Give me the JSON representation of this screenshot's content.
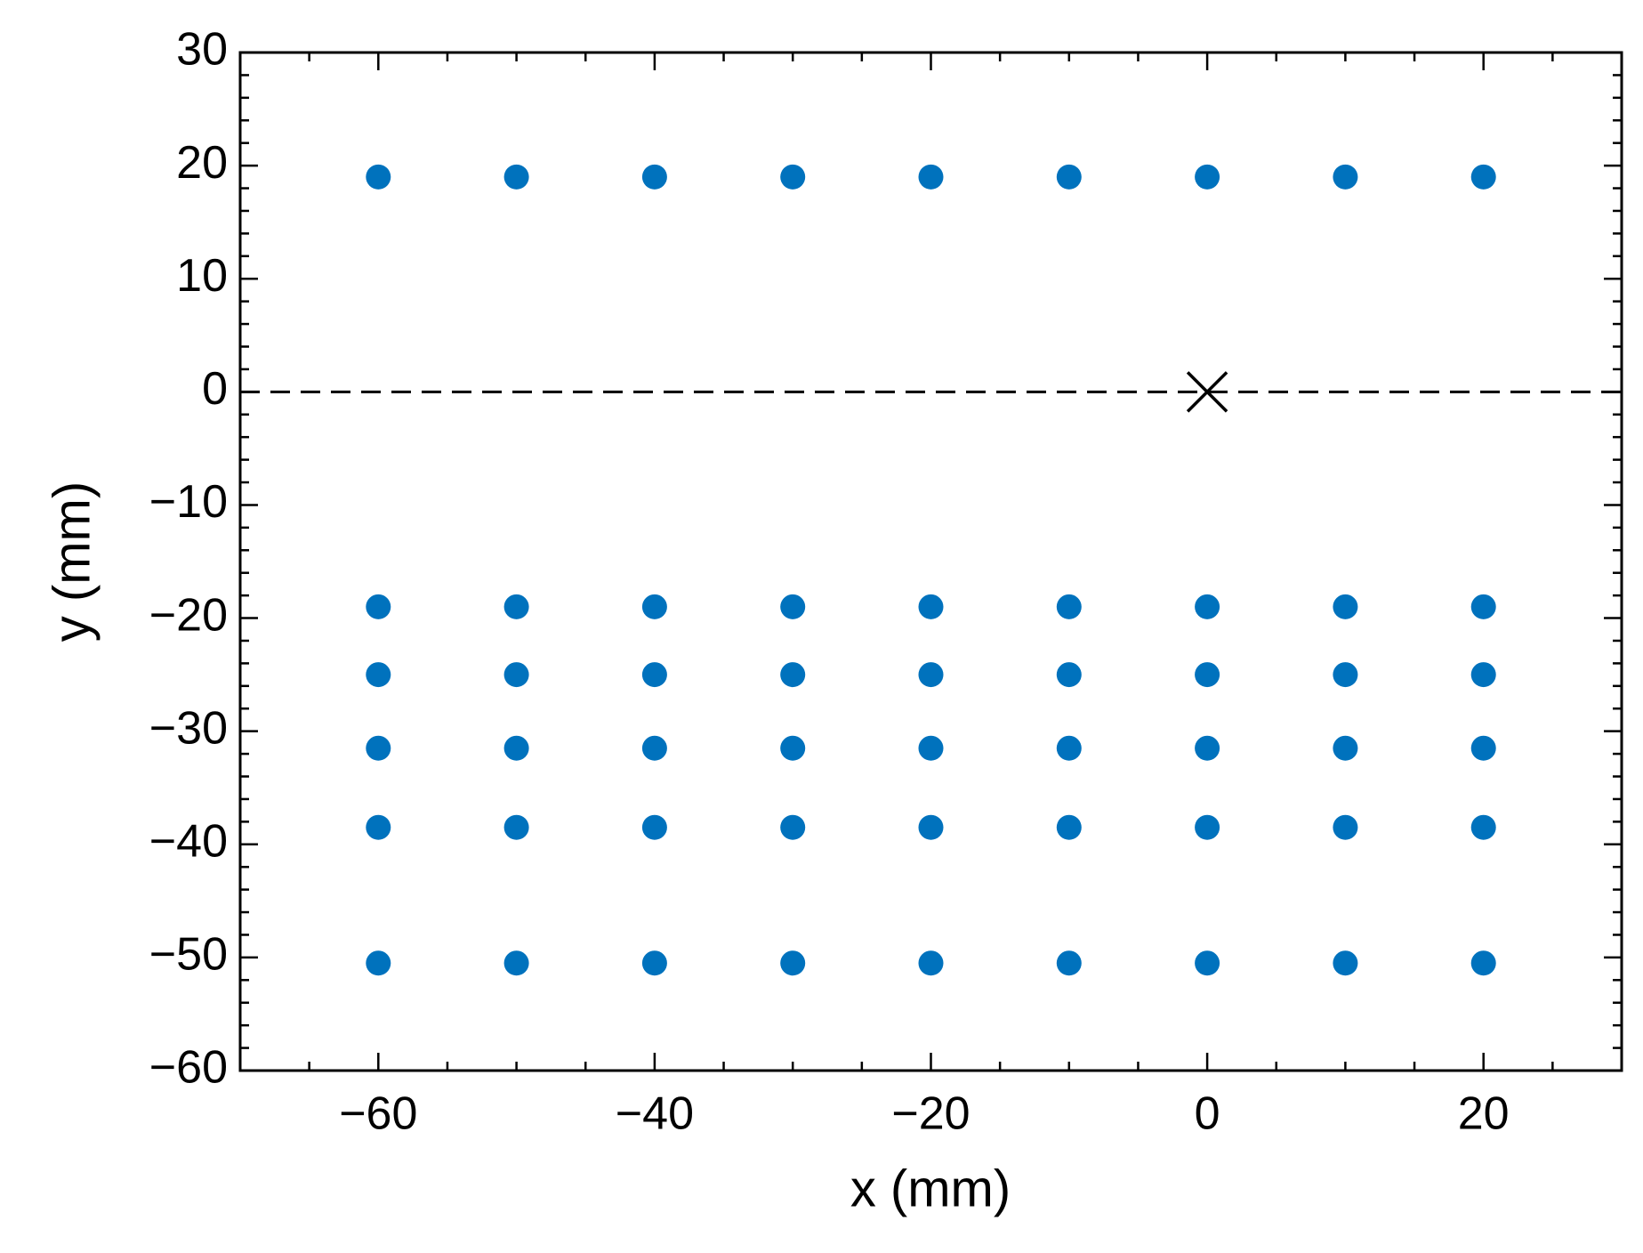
{
  "chart_data": {
    "type": "scatter",
    "xlabel": "x (mm)",
    "ylabel": "y (mm)",
    "xlim": [
      -70,
      30
    ],
    "ylim": [
      -60,
      30
    ],
    "xticks": [
      {
        "value": -60,
        "label": "−60"
      },
      {
        "value": -40,
        "label": "−40"
      },
      {
        "value": -20,
        "label": "−20"
      },
      0,
      20
    ],
    "yticks": [
      {
        "value": -60,
        "label": "−60"
      },
      {
        "value": -50,
        "label": "−50"
      },
      {
        "value": -40,
        "label": "−40"
      },
      {
        "value": -30,
        "label": "−30"
      },
      {
        "value": -20,
        "label": "−20"
      },
      {
        "value": -10,
        "label": "−10"
      },
      0,
      10,
      20,
      30
    ],
    "xminorticks": [
      -65,
      -55,
      -50,
      -45,
      -35,
      -30,
      -25,
      -15,
      -10,
      -5,
      5,
      10,
      15,
      25
    ],
    "yminorticks": [
      -58,
      -56,
      -54,
      -52,
      -48,
      -46,
      -44,
      -42,
      -38,
      -36,
      -34,
      -32,
      -28,
      -26,
      -24,
      -22,
      -18,
      -16,
      -14,
      -12,
      -8,
      -6,
      -4,
      -2,
      2,
      4,
      6,
      8,
      12,
      14,
      16,
      18,
      22,
      24,
      26,
      28
    ],
    "hlines": [
      {
        "y": 0,
        "style": "dashed",
        "color": "#000000"
      }
    ],
    "series": [
      {
        "color": "#0072bd",
        "marker": "circle",
        "x": [
          -60,
          -50,
          -40,
          -30,
          -20,
          -10,
          0,
          10,
          20,
          -60,
          -50,
          -40,
          -30,
          -20,
          -10,
          0,
          10,
          20,
          -60,
          -50,
          -40,
          -30,
          -20,
          -10,
          0,
          10,
          20,
          -60,
          -50,
          -40,
          -30,
          -20,
          -10,
          0,
          10,
          20,
          -60,
          -50,
          -40,
          -30,
          -20,
          -10,
          0,
          10,
          20,
          -60,
          -50,
          -40,
          -30,
          -20,
          -10,
          0,
          10,
          20
        ],
        "y": [
          19,
          19,
          19,
          19,
          19,
          19,
          19,
          19,
          19,
          -19,
          -19,
          -19,
          -19,
          -19,
          -19,
          -19,
          -19,
          -19,
          -25,
          -25,
          -25,
          -25,
          -25,
          -25,
          -25,
          -25,
          -25,
          -31.5,
          -31.5,
          -31.5,
          -31.5,
          -31.5,
          -31.5,
          -31.5,
          -31.5,
          -31.5,
          -38.5,
          -38.5,
          -38.5,
          -38.5,
          -38.5,
          -38.5,
          -38.5,
          -38.5,
          -38.5,
          -50.5,
          -50.5,
          -50.5,
          -50.5,
          -50.5,
          -50.5,
          -50.5,
          -50.5,
          -50.5
        ]
      },
      {
        "color": "#000000",
        "marker": "x",
        "x": [
          0
        ],
        "y": [
          0
        ]
      }
    ]
  }
}
